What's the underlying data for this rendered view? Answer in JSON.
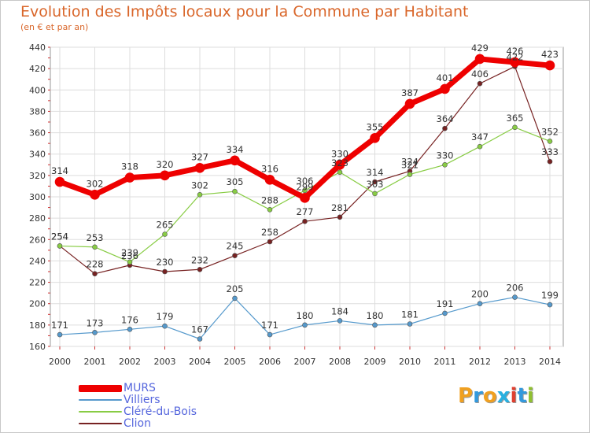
{
  "title": "Evolution des Impôts locaux pour la Commune par Habitant",
  "subtitle": "(en € et par an)",
  "brand": {
    "text": "Proxiti",
    "letters": [
      "P",
      "r",
      "o",
      "x",
      "i",
      "t",
      "i"
    ],
    "colors": [
      "#f0a020",
      "#3399dd",
      "#f0a020",
      "#2ab0e0",
      "#e04030",
      "#3399dd",
      "#90c030"
    ]
  },
  "chart_data": {
    "type": "line",
    "x": [
      2000,
      2001,
      2002,
      2003,
      2004,
      2005,
      2006,
      2007,
      2008,
      2009,
      2010,
      2011,
      2012,
      2013,
      2014
    ],
    "ylim": [
      160,
      440
    ],
    "yticks": [
      160,
      180,
      200,
      220,
      240,
      260,
      280,
      300,
      320,
      340,
      360,
      380,
      400,
      420,
      440
    ],
    "grid": true,
    "legend": "bottom-left",
    "series": [
      {
        "name": "MURS",
        "color": "#ee0000",
        "values": [
          314,
          302,
          318,
          320,
          327,
          334,
          316,
          299,
          330,
          355,
          387,
          401,
          429,
          426,
          423
        ]
      },
      {
        "name": "Villiers",
        "color": "#5599cc",
        "values": [
          171,
          173,
          176,
          179,
          167,
          205,
          171,
          180,
          184,
          180,
          181,
          191,
          200,
          206,
          199
        ]
      },
      {
        "name": "Cléré-du-Bois",
        "color": "#88cc44",
        "values": [
          254,
          253,
          239,
          265,
          302,
          305,
          288,
          306,
          323,
          303,
          321,
          330,
          347,
          365,
          352
        ]
      },
      {
        "name": "Clion",
        "color": "#772222",
        "values": [
          254,
          228,
          236,
          230,
          232,
          245,
          258,
          277,
          281,
          314,
          324,
          364,
          406,
          422,
          333
        ]
      }
    ]
  }
}
